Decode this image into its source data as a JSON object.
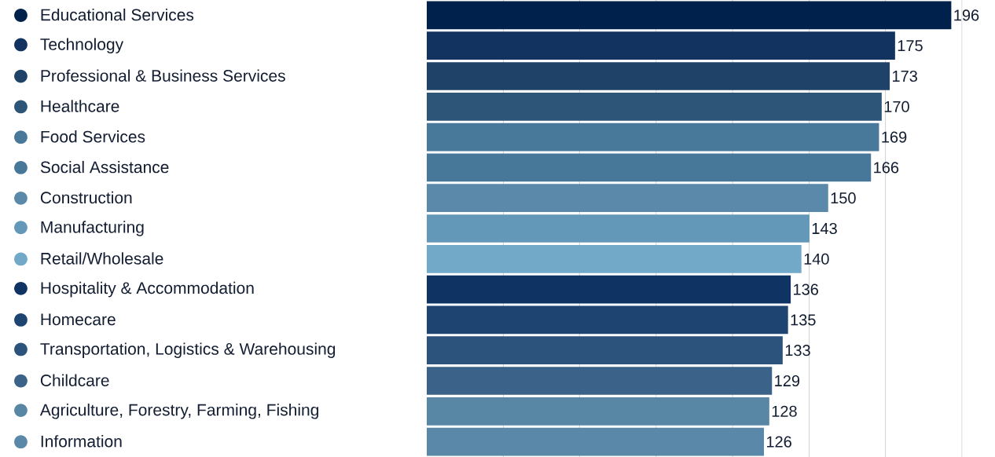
{
  "chart_data": {
    "type": "bar",
    "orientation": "horizontal",
    "categories": [
      "Educational Services",
      "Technology",
      "Professional & Business Services",
      "Healthcare",
      "Food Services",
      "Social Assistance",
      "Construction",
      "Manufacturing",
      "Retail/Wholesale",
      "Hospitality & Accommodation",
      "Homecare",
      "Transportation, Logistics & Warehousing",
      "Childcare",
      "Agriculture, Forestry, Farming, Fishing",
      "Information"
    ],
    "values": [
      196,
      175,
      173,
      170,
      169,
      166,
      150,
      143,
      140,
      136,
      135,
      133,
      129,
      128,
      126
    ],
    "colors": [
      "#01214d",
      "#12325f",
      "#1f4268",
      "#2c5577",
      "#48789a",
      "#477899",
      "#5a89aa",
      "#6498b9",
      "#72a8c8",
      "#0f3463",
      "#1e4571",
      "#2c537b",
      "#3b6289",
      "#5886a5",
      "#5988a8"
    ],
    "data_labels": true,
    "xlim": [
      0,
      200
    ],
    "xticks": [
      {
        "value": 28.6,
        "label": null
      },
      {
        "value": 57.1,
        "label": null
      },
      {
        "value": 85.7,
        "label": null
      },
      {
        "value": 114.3,
        "label": null
      },
      {
        "value": 142.9,
        "label": null
      },
      {
        "value": 171.4,
        "label": null
      },
      {
        "value": 200,
        "label": null
      }
    ],
    "grid": "x",
    "tick_labels": "y"
  }
}
